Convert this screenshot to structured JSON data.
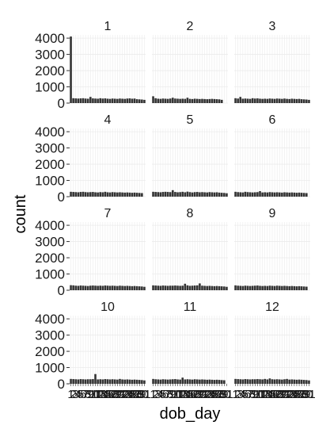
{
  "chart_data": {
    "type": "bar",
    "facet_variable": "dob_month",
    "xlabel": "dob_day",
    "ylabel": "count",
    "x_categories": [
      "1",
      "2",
      "3",
      "4",
      "5",
      "6",
      "7",
      "8",
      "9",
      "10",
      "11",
      "12",
      "13",
      "14",
      "15",
      "16",
      "17",
      "18",
      "19",
      "20",
      "21",
      "22",
      "23",
      "24",
      "25",
      "26",
      "27",
      "28",
      "29",
      "30",
      "31"
    ],
    "x_tick_labels": [
      "1",
      "2",
      "3",
      "4",
      "5",
      "6",
      "7",
      "8",
      "9",
      "10",
      "11",
      "12",
      "13",
      "14",
      "15",
      "16",
      "17",
      "18",
      "19",
      "20",
      "21",
      "22",
      "23",
      "24",
      "25",
      "26",
      "27",
      "28",
      "29",
      "30",
      "31"
    ],
    "y_ticks": [
      0,
      1000,
      2000,
      3000,
      4000
    ],
    "y_tick_labels": [
      "0",
      "1000",
      "2000",
      "3000",
      "4000"
    ],
    "ylim": [
      0,
      4200
    ],
    "bar_color": "#333333",
    "panel_background": "#ffffff",
    "grid_color": "#ebebeb",
    "grid": true,
    "facets": [
      {
        "label": "1",
        "values": [
          4100,
          300,
          290,
          280,
          290,
          300,
          280,
          270,
          380,
          290,
          280,
          270,
          300,
          280,
          290,
          270,
          260,
          280,
          270,
          260,
          280,
          270,
          260,
          280,
          290,
          270,
          280,
          240,
          230,
          220,
          200
        ]
      },
      {
        "label": "2",
        "values": [
          420,
          300,
          270,
          260,
          280,
          270,
          260,
          280,
          330,
          280,
          270,
          260,
          270,
          260,
          330,
          260,
          250,
          270,
          260,
          250,
          260,
          250,
          240,
          250,
          260,
          250,
          240,
          230,
          200
        ]
      },
      {
        "label": "3",
        "values": [
          300,
          280,
          380,
          270,
          280,
          270,
          260,
          300,
          280,
          290,
          270,
          260,
          270,
          260,
          280,
          270,
          260,
          280,
          270,
          260,
          280,
          260,
          250,
          270,
          260,
          250,
          260,
          240,
          230,
          220,
          200
        ]
      },
      {
        "label": "4",
        "values": [
          300,
          290,
          280,
          270,
          290,
          300,
          280,
          270,
          280,
          290,
          270,
          260,
          280,
          270,
          300,
          270,
          260,
          280,
          270,
          260,
          270,
          260,
          250,
          260,
          250,
          240,
          250,
          240,
          230,
          220
        ]
      },
      {
        "label": "5",
        "values": [
          300,
          290,
          280,
          270,
          290,
          300,
          290,
          280,
          400,
          290,
          270,
          280,
          300,
          270,
          310,
          280,
          260,
          280,
          290,
          270,
          280,
          270,
          260,
          280,
          270,
          260,
          270,
          250,
          240,
          230,
          210
        ]
      },
      {
        "label": "6",
        "values": [
          300,
          280,
          270,
          260,
          300,
          280,
          270,
          260,
          270,
          280,
          340,
          260,
          270,
          260,
          280,
          270,
          260,
          270,
          260,
          250,
          270,
          260,
          250,
          260,
          250,
          240,
          250,
          240,
          230,
          220
        ]
      },
      {
        "label": "7",
        "values": [
          310,
          300,
          280,
          270,
          290,
          280,
          270,
          260,
          280,
          290,
          280,
          270,
          280,
          270,
          290,
          280,
          270,
          280,
          270,
          260,
          280,
          270,
          260,
          270,
          260,
          250,
          260,
          250,
          240,
          230,
          210
        ]
      },
      {
        "label": "8",
        "values": [
          300,
          290,
          280,
          270,
          290,
          280,
          270,
          280,
          280,
          290,
          280,
          270,
          280,
          400,
          300,
          270,
          280,
          290,
          300,
          420,
          280,
          270,
          260,
          270,
          260,
          250,
          260,
          250,
          240,
          230,
          210
        ]
      },
      {
        "label": "9",
        "values": [
          300,
          280,
          270,
          260,
          280,
          270,
          260,
          270,
          280,
          290,
          270,
          260,
          270,
          260,
          280,
          270,
          260,
          280,
          270,
          260,
          270,
          260,
          250,
          260,
          250,
          240,
          250,
          240,
          230,
          220
        ]
      },
      {
        "label": "10",
        "values": [
          300,
          290,
          280,
          270,
          290,
          280,
          270,
          280,
          280,
          290,
          600,
          270,
          280,
          270,
          290,
          280,
          270,
          280,
          270,
          260,
          300,
          270,
          260,
          270,
          260,
          250,
          260,
          250,
          240,
          230,
          210
        ]
      },
      {
        "label": "11",
        "values": [
          300,
          280,
          270,
          260,
          280,
          270,
          260,
          270,
          280,
          290,
          270,
          260,
          380,
          270,
          280,
          270,
          260,
          280,
          270,
          260,
          270,
          260,
          250,
          260,
          250,
          240,
          250,
          240,
          230,
          220
        ]
      },
      {
        "label": "12",
        "values": [
          300,
          290,
          280,
          270,
          290,
          280,
          270,
          280,
          280,
          290,
          280,
          270,
          300,
          270,
          330,
          280,
          270,
          280,
          270,
          260,
          280,
          300,
          260,
          270,
          260,
          250,
          260,
          250,
          240,
          230,
          210
        ]
      }
    ]
  }
}
